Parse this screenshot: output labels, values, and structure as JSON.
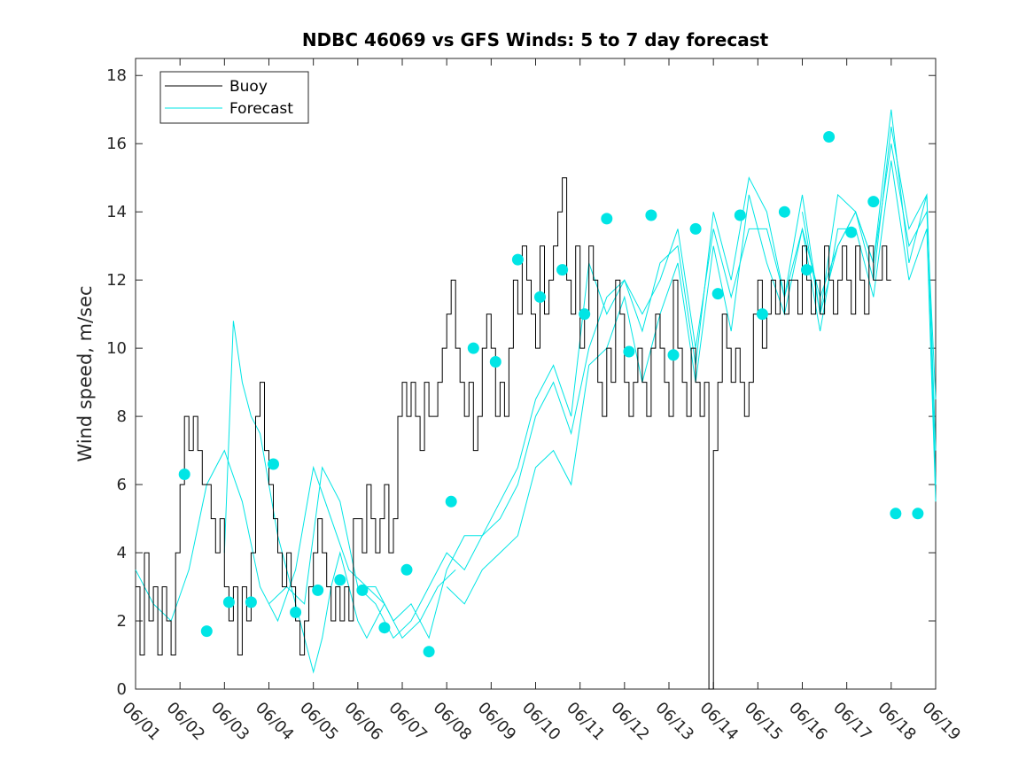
{
  "chart_data": {
    "type": "line",
    "title": "NDBC 46069 vs GFS Winds: 5 to 7 day forecast",
    "xlabel": "",
    "ylabel": "Wind speed, m/sec",
    "x_tick_labels": [
      "06/01",
      "06/02",
      "06/03",
      "06/04",
      "06/05",
      "06/06",
      "06/07",
      "06/08",
      "06/09",
      "06/10",
      "06/11",
      "06/12",
      "06/13",
      "06/14",
      "06/15",
      "06/16",
      "06/17",
      "06/18",
      "06/19"
    ],
    "xlim_days": [
      0,
      18
    ],
    "ylim": [
      0,
      18.5
    ],
    "y_ticks": [
      0,
      2,
      4,
      6,
      8,
      10,
      12,
      14,
      16,
      18
    ],
    "grid": false,
    "legend_position": "top-left",
    "colors": {
      "buoy": "#000000",
      "forecast": "#00e5e5",
      "axes": "#262626"
    },
    "series": [
      {
        "name": "Buoy",
        "style": "step-line",
        "day": [
          0.0,
          0.1,
          0.2,
          0.3,
          0.4,
          0.5,
          0.6,
          0.7,
          0.8,
          0.9,
          1.0,
          1.1,
          1.2,
          1.3,
          1.4,
          1.5,
          1.6,
          1.7,
          1.8,
          1.9,
          2.0,
          2.1,
          2.2,
          2.3,
          2.4,
          2.5,
          2.6,
          2.7,
          2.8,
          2.9,
          3.0,
          3.1,
          3.2,
          3.3,
          3.4,
          3.5,
          3.6,
          3.7,
          3.8,
          3.9,
          4.0,
          4.1,
          4.2,
          4.3,
          4.4,
          4.5,
          4.6,
          4.7,
          4.8,
          4.9,
          5.0,
          5.1,
          5.2,
          5.3,
          5.4,
          5.5,
          5.6,
          5.7,
          5.8,
          5.9,
          6.0,
          6.1,
          6.2,
          6.3,
          6.4,
          6.5,
          6.6,
          6.7,
          6.8,
          6.9,
          7.0,
          7.1,
          7.2,
          7.3,
          7.4,
          7.5,
          7.6,
          7.7,
          7.8,
          7.9,
          8.0,
          8.1,
          8.2,
          8.3,
          8.4,
          8.5,
          8.6,
          8.7,
          8.8,
          8.9,
          9.0,
          9.1,
          9.2,
          9.3,
          9.4,
          9.5,
          9.6,
          9.7,
          9.8,
          9.9,
          10.0,
          10.1,
          10.2,
          10.3,
          10.4,
          10.5,
          10.6,
          10.7,
          10.8,
          10.9,
          11.0,
          11.1,
          11.2,
          11.3,
          11.4,
          11.5,
          11.6,
          11.7,
          11.8,
          11.9,
          12.0,
          12.1,
          12.2,
          12.3,
          12.4,
          12.5,
          12.6,
          12.7,
          12.8,
          12.9,
          13.0,
          13.1,
          13.2,
          13.3,
          13.4,
          13.5,
          13.6,
          13.7,
          13.8,
          13.9,
          14.0,
          14.1,
          14.2,
          14.3,
          14.4,
          14.5,
          14.6,
          14.7,
          14.8,
          14.9,
          15.0,
          15.1,
          15.2,
          15.3,
          15.4,
          15.5,
          15.6,
          15.7,
          15.8,
          15.9,
          16.0,
          16.1,
          16.2,
          16.3,
          16.4,
          16.5,
          16.6,
          16.7,
          16.8,
          16.9,
          17.0,
          17.1,
          17.2,
          17.3,
          17.4,
          17.5
        ],
        "values": [
          3,
          1,
          4,
          2,
          3,
          1,
          3,
          2,
          1,
          4,
          6,
          8,
          7,
          8,
          7,
          6,
          6,
          5,
          4,
          5,
          3,
          2,
          3,
          1,
          3,
          2,
          4,
          8,
          9,
          7,
          6,
          5,
          4,
          3,
          4,
          3,
          2,
          1,
          2,
          3,
          4,
          5,
          4,
          3,
          2,
          3,
          2,
          3,
          2,
          5,
          5,
          4,
          6,
          5,
          4,
          5,
          6,
          4,
          5,
          8,
          9,
          8,
          9,
          8,
          7,
          9,
          8,
          8,
          9,
          10,
          11,
          12,
          10,
          9,
          8,
          9,
          7,
          8,
          10,
          11,
          10,
          8,
          9,
          8,
          10,
          12,
          11,
          13,
          12,
          11,
          10,
          13,
          11,
          12,
          13,
          14,
          15,
          12,
          11,
          13,
          10,
          11,
          13,
          12,
          9,
          8,
          10,
          9,
          12,
          11,
          9,
          8,
          9,
          10,
          9,
          8,
          10,
          11,
          10,
          9,
          8,
          12,
          10,
          9,
          8,
          10,
          9,
          8,
          9,
          0,
          7,
          9,
          11,
          10,
          9,
          10,
          9,
          8,
          9,
          11,
          12,
          10,
          11,
          12,
          11,
          12,
          11,
          12,
          12,
          11,
          13,
          12,
          11,
          12,
          11,
          13,
          12,
          11,
          12,
          13,
          12,
          11,
          13,
          12,
          11,
          13,
          12,
          12,
          13,
          12
        ]
      },
      {
        "name": "Forecast",
        "style": "lines",
        "lines": [
          {
            "day": [
              0.0,
              0.4,
              0.8,
              1.2,
              1.6,
              2.0,
              2.4,
              2.8,
              3.2,
              3.6,
              4.0,
              4.4,
              4.8,
              5.2,
              5.6,
              6.0,
              6.4,
              6.8,
              7.2
            ],
            "values": [
              3.5,
              2.5,
              2.0,
              3.5,
              6.0,
              7.0,
              5.5,
              3.0,
              2.0,
              3.5,
              6.5,
              5.0,
              3.5,
              3.0,
              2.5,
              1.5,
              2.0,
              3.0,
              3.5
            ]
          },
          {
            "day": [
              2.0,
              2.2,
              2.4,
              2.6,
              2.8,
              3.0,
              3.2,
              3.4,
              3.6,
              3.8,
              4.0,
              4.2,
              4.4,
              4.6,
              4.8,
              5.0,
              5.2,
              5.4,
              5.6
            ],
            "values": [
              4.0,
              10.8,
              9.0,
              8.0,
              7.5,
              6.0,
              4.5,
              3.5,
              2.5,
              1.5,
              0.5,
              1.5,
              3.0,
              4.0,
              3.0,
              2.0,
              1.5,
              2.0,
              2.5
            ]
          },
          {
            "day": [
              3.0,
              3.4,
              3.8,
              4.2,
              4.6,
              5.0,
              5.4,
              5.8,
              6.2,
              6.6,
              7.0,
              7.4,
              7.8,
              8.2,
              8.6,
              9.0,
              9.4,
              9.8,
              10.2,
              10.6,
              11.0,
              11.4,
              11.8,
              12.2,
              12.6,
              13.0,
              13.4,
              13.8,
              14.2,
              14.6,
              15.0,
              15.4,
              15.8,
              16.2,
              16.6,
              17.0,
              17.4,
              17.8,
              18.0
            ],
            "values": [
              2.5,
              3.0,
              2.5,
              6.5,
              5.5,
              3.0,
              3.0,
              2.0,
              2.5,
              1.5,
              3.5,
              4.5,
              4.5,
              5.5,
              6.5,
              8.5,
              9.5,
              8.0,
              12.5,
              11.0,
              12.0,
              11.0,
              12.0,
              13.5,
              10.0,
              13.5,
              11.5,
              13.5,
              13.5,
              11.5,
              13.5,
              11.5,
              13.0,
              14.0,
              12.5,
              16.0,
              13.0,
              14.0,
              8.5
            ]
          },
          {
            "day": [
              5.0,
              5.4,
              5.8,
              6.2,
              6.6,
              7.0,
              7.4,
              7.8,
              8.2,
              8.6,
              9.0,
              9.4,
              9.8,
              10.2,
              10.6,
              11.0,
              11.4,
              11.8,
              12.2,
              12.6,
              13.0,
              13.4,
              13.8,
              14.2,
              14.6,
              15.0,
              15.4,
              15.8,
              16.2,
              16.6,
              17.0,
              17.4,
              17.8,
              18.0
            ],
            "values": [
              3.0,
              2.5,
              1.5,
              2.0,
              3.0,
              4.0,
              3.5,
              4.5,
              5.0,
              6.0,
              8.0,
              9.0,
              7.5,
              10.0,
              11.5,
              12.0,
              10.5,
              12.5,
              13.0,
              9.5,
              14.0,
              12.0,
              15.0,
              14.0,
              11.5,
              14.5,
              11.0,
              14.5,
              14.0,
              12.0,
              16.5,
              13.5,
              14.5,
              6.0
            ]
          },
          {
            "day": [
              7.0,
              7.4,
              7.8,
              8.2,
              8.6,
              9.0,
              9.4,
              9.8,
              10.2,
              10.6,
              11.0,
              11.4,
              11.8,
              12.2,
              12.6,
              13.0,
              13.4,
              13.8,
              14.2,
              14.6,
              15.0,
              15.4,
              15.8,
              16.2,
              16.6,
              17.0,
              17.4,
              17.8,
              18.0
            ],
            "values": [
              3.0,
              2.5,
              3.5,
              4.0,
              4.5,
              6.5,
              7.0,
              6.0,
              9.5,
              10.0,
              11.5,
              9.0,
              11.0,
              12.5,
              9.0,
              13.0,
              10.5,
              14.5,
              12.5,
              11.0,
              13.5,
              10.5,
              13.5,
              13.5,
              11.5,
              15.5,
              12.0,
              13.5,
              5.5
            ]
          },
          {
            "day": [
              15.0,
              15.4,
              15.8,
              16.2,
              16.6,
              17.0,
              17.4,
              17.8,
              18.0
            ],
            "values": [
              14.0,
              11.0,
              13.0,
              14.0,
              12.5,
              17.0,
              12.5,
              14.5,
              7.0
            ]
          }
        ],
        "points": {
          "day": [
            1.1,
            1.6,
            2.1,
            2.6,
            3.1,
            3.6,
            4.1,
            4.6,
            5.1,
            5.6,
            6.1,
            6.6,
            7.1,
            7.6,
            8.1,
            8.6,
            9.1,
            9.6,
            10.1,
            10.6,
            11.1,
            11.6,
            12.1,
            12.6,
            13.1,
            13.6,
            14.1,
            14.6,
            15.1,
            15.6,
            16.1,
            16.6,
            17.1,
            17.6
          ],
          "values": [
            6.3,
            1.7,
            2.55,
            2.55,
            6.6,
            2.25,
            2.9,
            3.2,
            2.9,
            1.8,
            3.5,
            1.1,
            5.5,
            10.0,
            9.6,
            12.6,
            11.5,
            12.3,
            11.0,
            13.8,
            9.9,
            13.9,
            9.8,
            13.5,
            11.6,
            13.9,
            11.0,
            14.0,
            12.3,
            16.2,
            13.4,
            14.3,
            5.15,
            5.15
          ]
        }
      }
    ]
  }
}
